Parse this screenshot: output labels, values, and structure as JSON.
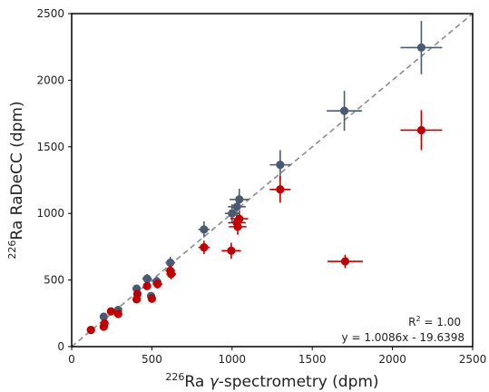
{
  "chart_data": {
    "type": "scatter",
    "xlabel_sup": "226",
    "xlabel_main": "Ra ",
    "xlabel_greek": "γ",
    "xlabel_rest": "-spectrometry (dpm)",
    "ylabel_sup": "226",
    "ylabel_main": "Ra RaDeCC (dpm)",
    "xlim": [
      0,
      2500
    ],
    "ylim": [
      0,
      2500
    ],
    "xticks": [
      "0",
      "500",
      "1000",
      "1500",
      "2000",
      "2500"
    ],
    "yticks": [
      "0",
      "500",
      "1000",
      "1500",
      "2000",
      "2500"
    ],
    "xtick_values": [
      0,
      500,
      1000,
      1500,
      2000,
      2500
    ],
    "ytick_values": [
      0,
      500,
      1000,
      1500,
      2000,
      2500
    ],
    "grid": false,
    "reference_line": {
      "x": [
        0,
        2500
      ],
      "y": [
        0,
        2500
      ],
      "color": "#8c8c8c",
      "style": "dashed"
    },
    "annotation": {
      "r2_prefix": "R",
      "r2_sup": "2",
      "r2_value": " = 1.00",
      "equation": "y = 1.0086x - 19.6398"
    },
    "series": [
      {
        "color": "#4a5a72",
        "points": [
          {
            "x": 200,
            "y": 225,
            "xerr": 20,
            "yerr": 25
          },
          {
            "x": 290,
            "y": 275,
            "xerr": 20,
            "yerr": 20
          },
          {
            "x": 405,
            "y": 435,
            "xerr": 25,
            "yerr": 30
          },
          {
            "x": 470,
            "y": 510,
            "xerr": 30,
            "yerr": 35
          },
          {
            "x": 495,
            "y": 380,
            "xerr": 25,
            "yerr": 30
          },
          {
            "x": 530,
            "y": 490,
            "xerr": 30,
            "yerr": 35
          },
          {
            "x": 615,
            "y": 630,
            "xerr": 30,
            "yerr": 45
          },
          {
            "x": 825,
            "y": 880,
            "xerr": 35,
            "yerr": 60
          },
          {
            "x": 1000,
            "y": 1000,
            "xerr": 45,
            "yerr": 70
          },
          {
            "x": 1030,
            "y": 1050,
            "xerr": 55,
            "yerr": 70
          },
          {
            "x": 1045,
            "y": 1105,
            "xerr": 60,
            "yerr": 80
          },
          {
            "x": 1300,
            "y": 1365,
            "xerr": 65,
            "yerr": 110
          },
          {
            "x": 1700,
            "y": 1770,
            "xerr": 110,
            "yerr": 150
          },
          {
            "x": 2180,
            "y": 2245,
            "xerr": 130,
            "yerr": 200
          }
        ]
      },
      {
        "color": "#c00000",
        "points": [
          {
            "x": 120,
            "y": 125,
            "xerr": 15,
            "yerr": 15
          },
          {
            "x": 200,
            "y": 150,
            "xerr": 15,
            "yerr": 15
          },
          {
            "x": 205,
            "y": 175,
            "xerr": 15,
            "yerr": 20
          },
          {
            "x": 245,
            "y": 265,
            "xerr": 20,
            "yerr": 20
          },
          {
            "x": 290,
            "y": 245,
            "xerr": 20,
            "yerr": 20
          },
          {
            "x": 405,
            "y": 355,
            "xerr": 25,
            "yerr": 25
          },
          {
            "x": 410,
            "y": 395,
            "xerr": 25,
            "yerr": 25
          },
          {
            "x": 470,
            "y": 455,
            "xerr": 25,
            "yerr": 30
          },
          {
            "x": 500,
            "y": 360,
            "xerr": 25,
            "yerr": 30
          },
          {
            "x": 535,
            "y": 470,
            "xerr": 30,
            "yerr": 35
          },
          {
            "x": 615,
            "y": 570,
            "xerr": 30,
            "yerr": 40
          },
          {
            "x": 620,
            "y": 545,
            "xerr": 30,
            "yerr": 40
          },
          {
            "x": 825,
            "y": 745,
            "xerr": 35,
            "yerr": 50
          },
          {
            "x": 995,
            "y": 720,
            "xerr": 60,
            "yerr": 60
          },
          {
            "x": 1030,
            "y": 930,
            "xerr": 55,
            "yerr": 60
          },
          {
            "x": 1035,
            "y": 900,
            "xerr": 55,
            "yerr": 60
          },
          {
            "x": 1045,
            "y": 960,
            "xerr": 55,
            "yerr": 60
          },
          {
            "x": 1300,
            "y": 1180,
            "xerr": 65,
            "yerr": 100
          },
          {
            "x": 1705,
            "y": 640,
            "xerr": 110,
            "yerr": 50
          },
          {
            "x": 2180,
            "y": 1625,
            "xerr": 130,
            "yerr": 150
          }
        ]
      }
    ]
  }
}
